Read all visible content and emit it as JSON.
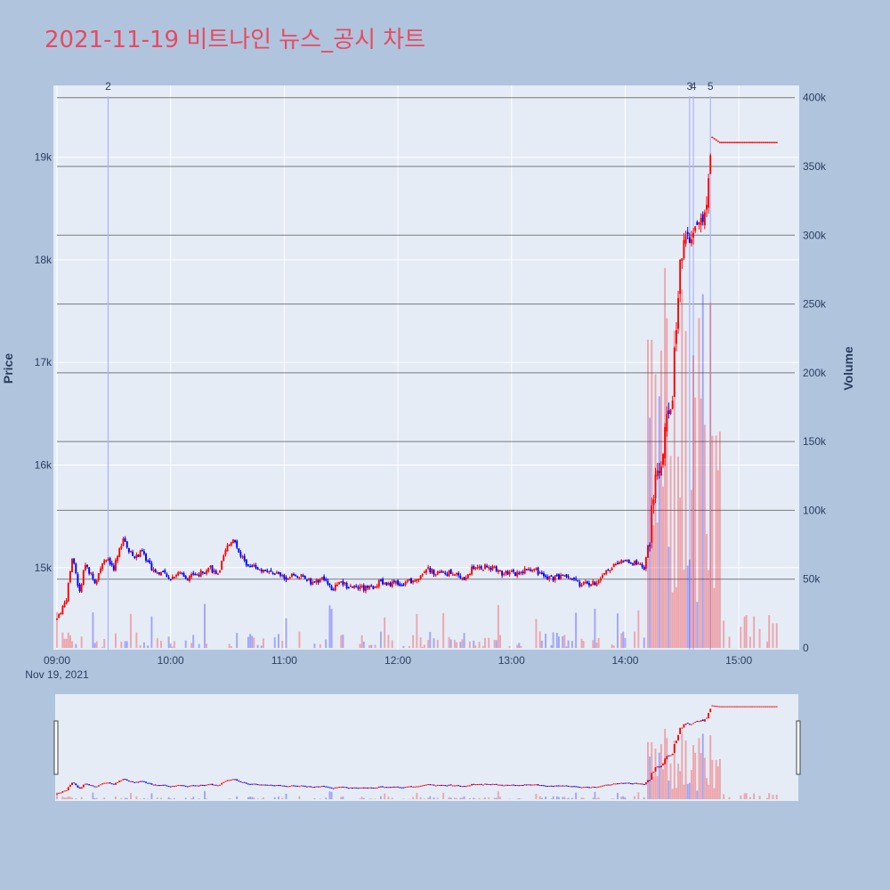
{
  "title": "2021-11-19 비트나인 뉴스_공시 차트",
  "chart_data": {
    "type": "candlestick",
    "title": "2021-11-19 비트나인 뉴스_공시 차트",
    "date_label": "Nov 19, 2021",
    "y_price_label": "Price",
    "y_volume_label": "Volume",
    "x_ticks": [
      "09:00",
      "10:00",
      "11:00",
      "12:00",
      "13:00",
      "14:00",
      "15:00"
    ],
    "price_ticks": [
      {
        "value": 15000,
        "label": "15k"
      },
      {
        "value": 16000,
        "label": "16k"
      },
      {
        "value": 17000,
        "label": "17k"
      },
      {
        "value": 18000,
        "label": "18k"
      },
      {
        "value": 19000,
        "label": "19k"
      }
    ],
    "volume_ticks": [
      {
        "value": 0,
        "label": "0"
      },
      {
        "value": 50000,
        "label": "50k"
      },
      {
        "value": 100000,
        "label": "100k"
      },
      {
        "value": 150000,
        "label": "150k"
      },
      {
        "value": 200000,
        "label": "200k"
      },
      {
        "value": 250000,
        "label": "250k"
      },
      {
        "value": 300000,
        "label": "300k"
      },
      {
        "value": 350000,
        "label": "350k"
      },
      {
        "value": 400000,
        "label": "400k"
      }
    ],
    "price_range": [
      14200,
      19700
    ],
    "volume_range": [
      0,
      405000
    ],
    "time_range_minutes": [
      0,
      390
    ],
    "price_path": [
      [
        0,
        14500
      ],
      [
        5,
        14700
      ],
      [
        8,
        15100
      ],
      [
        12,
        14750
      ],
      [
        15,
        15050
      ],
      [
        20,
        14850
      ],
      [
        25,
        15100
      ],
      [
        30,
        15000
      ],
      [
        35,
        15300
      ],
      [
        40,
        15100
      ],
      [
        45,
        15150
      ],
      [
        50,
        15000
      ],
      [
        55,
        14950
      ],
      [
        60,
        14900
      ],
      [
        65,
        14950
      ],
      [
        70,
        14900
      ],
      [
        75,
        14950
      ],
      [
        80,
        15000
      ],
      [
        85,
        14950
      ],
      [
        90,
        15200
      ],
      [
        93,
        15300
      ],
      [
        96,
        15150
      ],
      [
        100,
        15050
      ],
      [
        105,
        15000
      ],
      [
        110,
        14950
      ],
      [
        115,
        14950
      ],
      [
        120,
        14900
      ],
      [
        125,
        14950
      ],
      [
        130,
        14900
      ],
      [
        135,
        14850
      ],
      [
        140,
        14900
      ],
      [
        145,
        14800
      ],
      [
        150,
        14850
      ],
      [
        155,
        14800
      ],
      [
        160,
        14800
      ],
      [
        165,
        14800
      ],
      [
        170,
        14850
      ],
      [
        175,
        14850
      ],
      [
        180,
        14850
      ],
      [
        185,
        14850
      ],
      [
        190,
        14900
      ],
      [
        195,
        15000
      ],
      [
        200,
        14950
      ],
      [
        205,
        14950
      ],
      [
        210,
        14950
      ],
      [
        215,
        14900
      ],
      [
        220,
        15000
      ],
      [
        225,
        15000
      ],
      [
        230,
        15000
      ],
      [
        235,
        14950
      ],
      [
        240,
        14950
      ],
      [
        245,
        14950
      ],
      [
        250,
        15000
      ],
      [
        255,
        14950
      ],
      [
        260,
        14900
      ],
      [
        265,
        14900
      ],
      [
        270,
        14900
      ],
      [
        275,
        14850
      ],
      [
        280,
        14850
      ],
      [
        285,
        14850
      ],
      [
        290,
        14950
      ],
      [
        295,
        15050
      ],
      [
        300,
        15050
      ],
      [
        305,
        15050
      ],
      [
        310,
        15000
      ],
      [
        313,
        15300
      ],
      [
        316,
        15900
      ],
      [
        319,
        16000
      ],
      [
        322,
        16400
      ],
      [
        325,
        16700
      ],
      [
        328,
        17700
      ],
      [
        331,
        18300
      ],
      [
        334,
        18100
      ],
      [
        337,
        18300
      ],
      [
        340,
        18400
      ],
      [
        343,
        18500
      ],
      [
        346,
        19200
      ],
      [
        350,
        19150
      ],
      [
        380,
        19150
      ]
    ],
    "news_markers": [
      {
        "label": "2",
        "minute": 27
      },
      {
        "label": "3",
        "minute": 334
      },
      {
        "label": "4",
        "minute": 336
      },
      {
        "label": "5",
        "minute": 345
      }
    ],
    "colors": {
      "up": "#ff0000",
      "down": "#0000ff",
      "plot_bg": "#e5ecf6",
      "paper_bg": "#b0c4de",
      "title": "#e84a5f",
      "hline": "#555555",
      "marker_line": "#aab4ff"
    }
  }
}
